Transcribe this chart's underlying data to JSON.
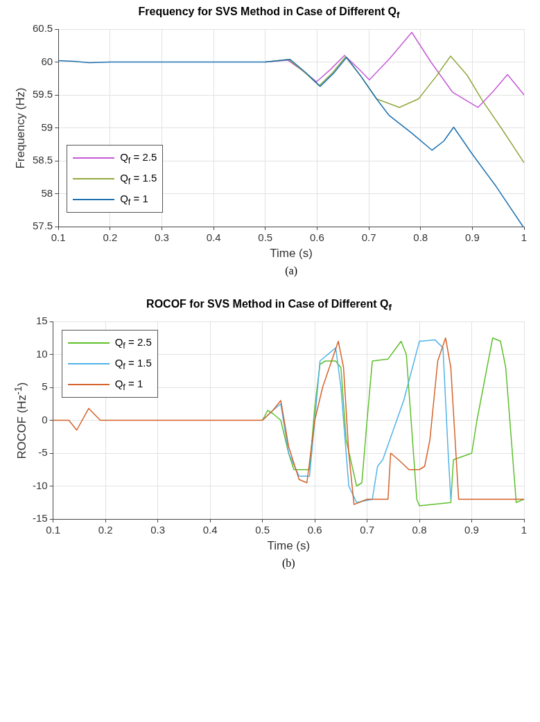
{
  "chart_data": [
    {
      "type": "line",
      "title": "Frequency for SVS Method in Case of Different Q$_{f}$",
      "xlabel": "Time (s)",
      "ylabel": "Frequency (Hz)",
      "annotations": [
        "(a)"
      ],
      "xlim": [
        0.1,
        1
      ],
      "xticks": [
        0.1,
        0.2,
        0.3,
        0.4,
        0.5,
        0.6,
        0.7,
        0.8,
        0.9,
        {
          "value": 1,
          "label": "1"
        }
      ],
      "ylim": [
        57.5,
        60.5
      ],
      "yticks": [
        57.5,
        58,
        58.5,
        59,
        59.5,
        60,
        60.5
      ],
      "grid": true,
      "legend": "bottom left",
      "marker": "none",
      "line_style": "solid",
      "series": [
        {
          "name": "Q$_{f}$ = 2.5",
          "color": "#c45ad6",
          "x": [
            0.5,
            0.543,
            0.57,
            0.599,
            0.625,
            0.653,
            0.68,
            0.701,
            0.74,
            0.783,
            0.82,
            0.862,
            0.911,
            0.94,
            0.968,
            1.0
          ],
          "values": [
            60.0,
            60.03,
            59.88,
            59.7,
            59.88,
            60.1,
            59.9,
            59.73,
            60.05,
            60.45,
            60.0,
            59.54,
            59.31,
            59.55,
            59.81,
            59.5
          ]
        },
        {
          "name": "Q$_{f}$ = 1.5",
          "color": "#8fa83c",
          "x": [
            0.5,
            0.545,
            0.575,
            0.604,
            0.63,
            0.655,
            0.685,
            0.715,
            0.759,
            0.796,
            0.83,
            0.858,
            0.89,
            0.919,
            0.96,
            1.0
          ],
          "values": [
            60.0,
            60.04,
            59.85,
            59.64,
            59.84,
            60.08,
            59.78,
            59.44,
            59.31,
            59.44,
            59.78,
            60.09,
            59.8,
            59.42,
            58.95,
            58.47
          ]
        },
        {
          "name": "Q$_{f}$ = 1",
          "color": "#1a6fb0",
          "x": [
            0.1,
            0.13,
            0.16,
            0.2,
            0.3,
            0.4,
            0.5,
            0.548,
            0.578,
            0.606,
            0.632,
            0.657,
            0.685,
            0.715,
            0.739,
            0.783,
            0.822,
            0.845,
            0.864,
            0.9,
            0.946,
            0.998
          ],
          "values": [
            60.02,
            60.01,
            59.99,
            60.0,
            60.0,
            60.0,
            60.0,
            60.04,
            59.84,
            59.63,
            59.83,
            60.07,
            59.78,
            59.44,
            59.19,
            58.92,
            58.66,
            58.8,
            59.01,
            58.6,
            58.11,
            57.5
          ]
        }
      ]
    },
    {
      "type": "line",
      "title": "ROCOF for SVS Method in Case of Different Q$_{f}$",
      "xlabel": "Time (s)",
      "ylabel": "ROCOF (Hz$^{-1}$)",
      "annotations": [
        "(b)"
      ],
      "xlim": [
        0.1,
        1
      ],
      "xticks": [
        0.1,
        0.2,
        0.3,
        0.4,
        0.5,
        0.6,
        0.7,
        0.8,
        0.9,
        {
          "value": 1,
          "label": "1"
        }
      ],
      "ylim": [
        -15,
        15
      ],
      "yticks": [
        -15,
        -10,
        -5,
        0,
        5,
        10,
        15
      ],
      "grid": true,
      "legend": "top left",
      "marker": "none",
      "line_style": "solid",
      "series": [
        {
          "name": "Q$_{f}$ = 2.5",
          "color": "#5cbf2a",
          "x": [
            0.5,
            0.51,
            0.52,
            0.535,
            0.55,
            0.56,
            0.59,
            0.6,
            0.61,
            0.62,
            0.64,
            0.65,
            0.66,
            0.68,
            0.69,
            0.7,
            0.71,
            0.74,
            0.765,
            0.775,
            0.795,
            0.8,
            0.86,
            0.865,
            0.9,
            0.91,
            0.94,
            0.955,
            0.965,
            0.985,
            1.0
          ],
          "values": [
            0,
            1.5,
            1,
            0,
            -5,
            -7.5,
            -7.5,
            2,
            8.5,
            9,
            9,
            8,
            -3,
            -10,
            -9.5,
            0,
            9,
            9.3,
            12,
            10,
            -12,
            -13,
            -12.5,
            -6,
            -5,
            0,
            12.5,
            12,
            8,
            -12.5,
            -12
          ]
        },
        {
          "name": "Q$_{f}$ = 1.5",
          "color": "#4fb3e8",
          "x": [
            0.5,
            0.52,
            0.535,
            0.55,
            0.57,
            0.59,
            0.6,
            0.61,
            0.64,
            0.65,
            0.665,
            0.68,
            0.71,
            0.72,
            0.73,
            0.77,
            0.8,
            0.83,
            0.845,
            0.855,
            0.86
          ],
          "values": [
            0,
            1.5,
            2.5,
            -5,
            -8.5,
            -8.5,
            0,
            9,
            11,
            5,
            -10,
            -12.5,
            -12,
            -7,
            -6,
            3,
            12,
            12.2,
            11,
            -5,
            -12
          ]
        },
        {
          "name": "Q$_{f}$ = 1",
          "color": "#d4622a",
          "x": [
            0.1,
            0.13,
            0.145,
            0.168,
            0.19,
            0.3,
            0.4,
            0.5,
            0.52,
            0.535,
            0.55,
            0.57,
            0.585,
            0.6,
            0.615,
            0.645,
            0.655,
            0.665,
            0.675,
            0.7,
            0.74,
            0.745,
            0.76,
            0.78,
            0.8,
            0.81,
            0.82,
            0.835,
            0.85,
            0.86,
            0.875,
            1.0
          ],
          "values": [
            0,
            0,
            -1.5,
            1.8,
            0,
            0,
            0,
            0,
            1.5,
            3,
            -4,
            -9,
            -9.5,
            0,
            5,
            12,
            8,
            -5,
            -12.8,
            -12,
            -12,
            -5,
            -6,
            -7.5,
            -7.5,
            -7,
            -3,
            9,
            12.5,
            8,
            -12,
            -12
          ]
        }
      ]
    }
  ]
}
